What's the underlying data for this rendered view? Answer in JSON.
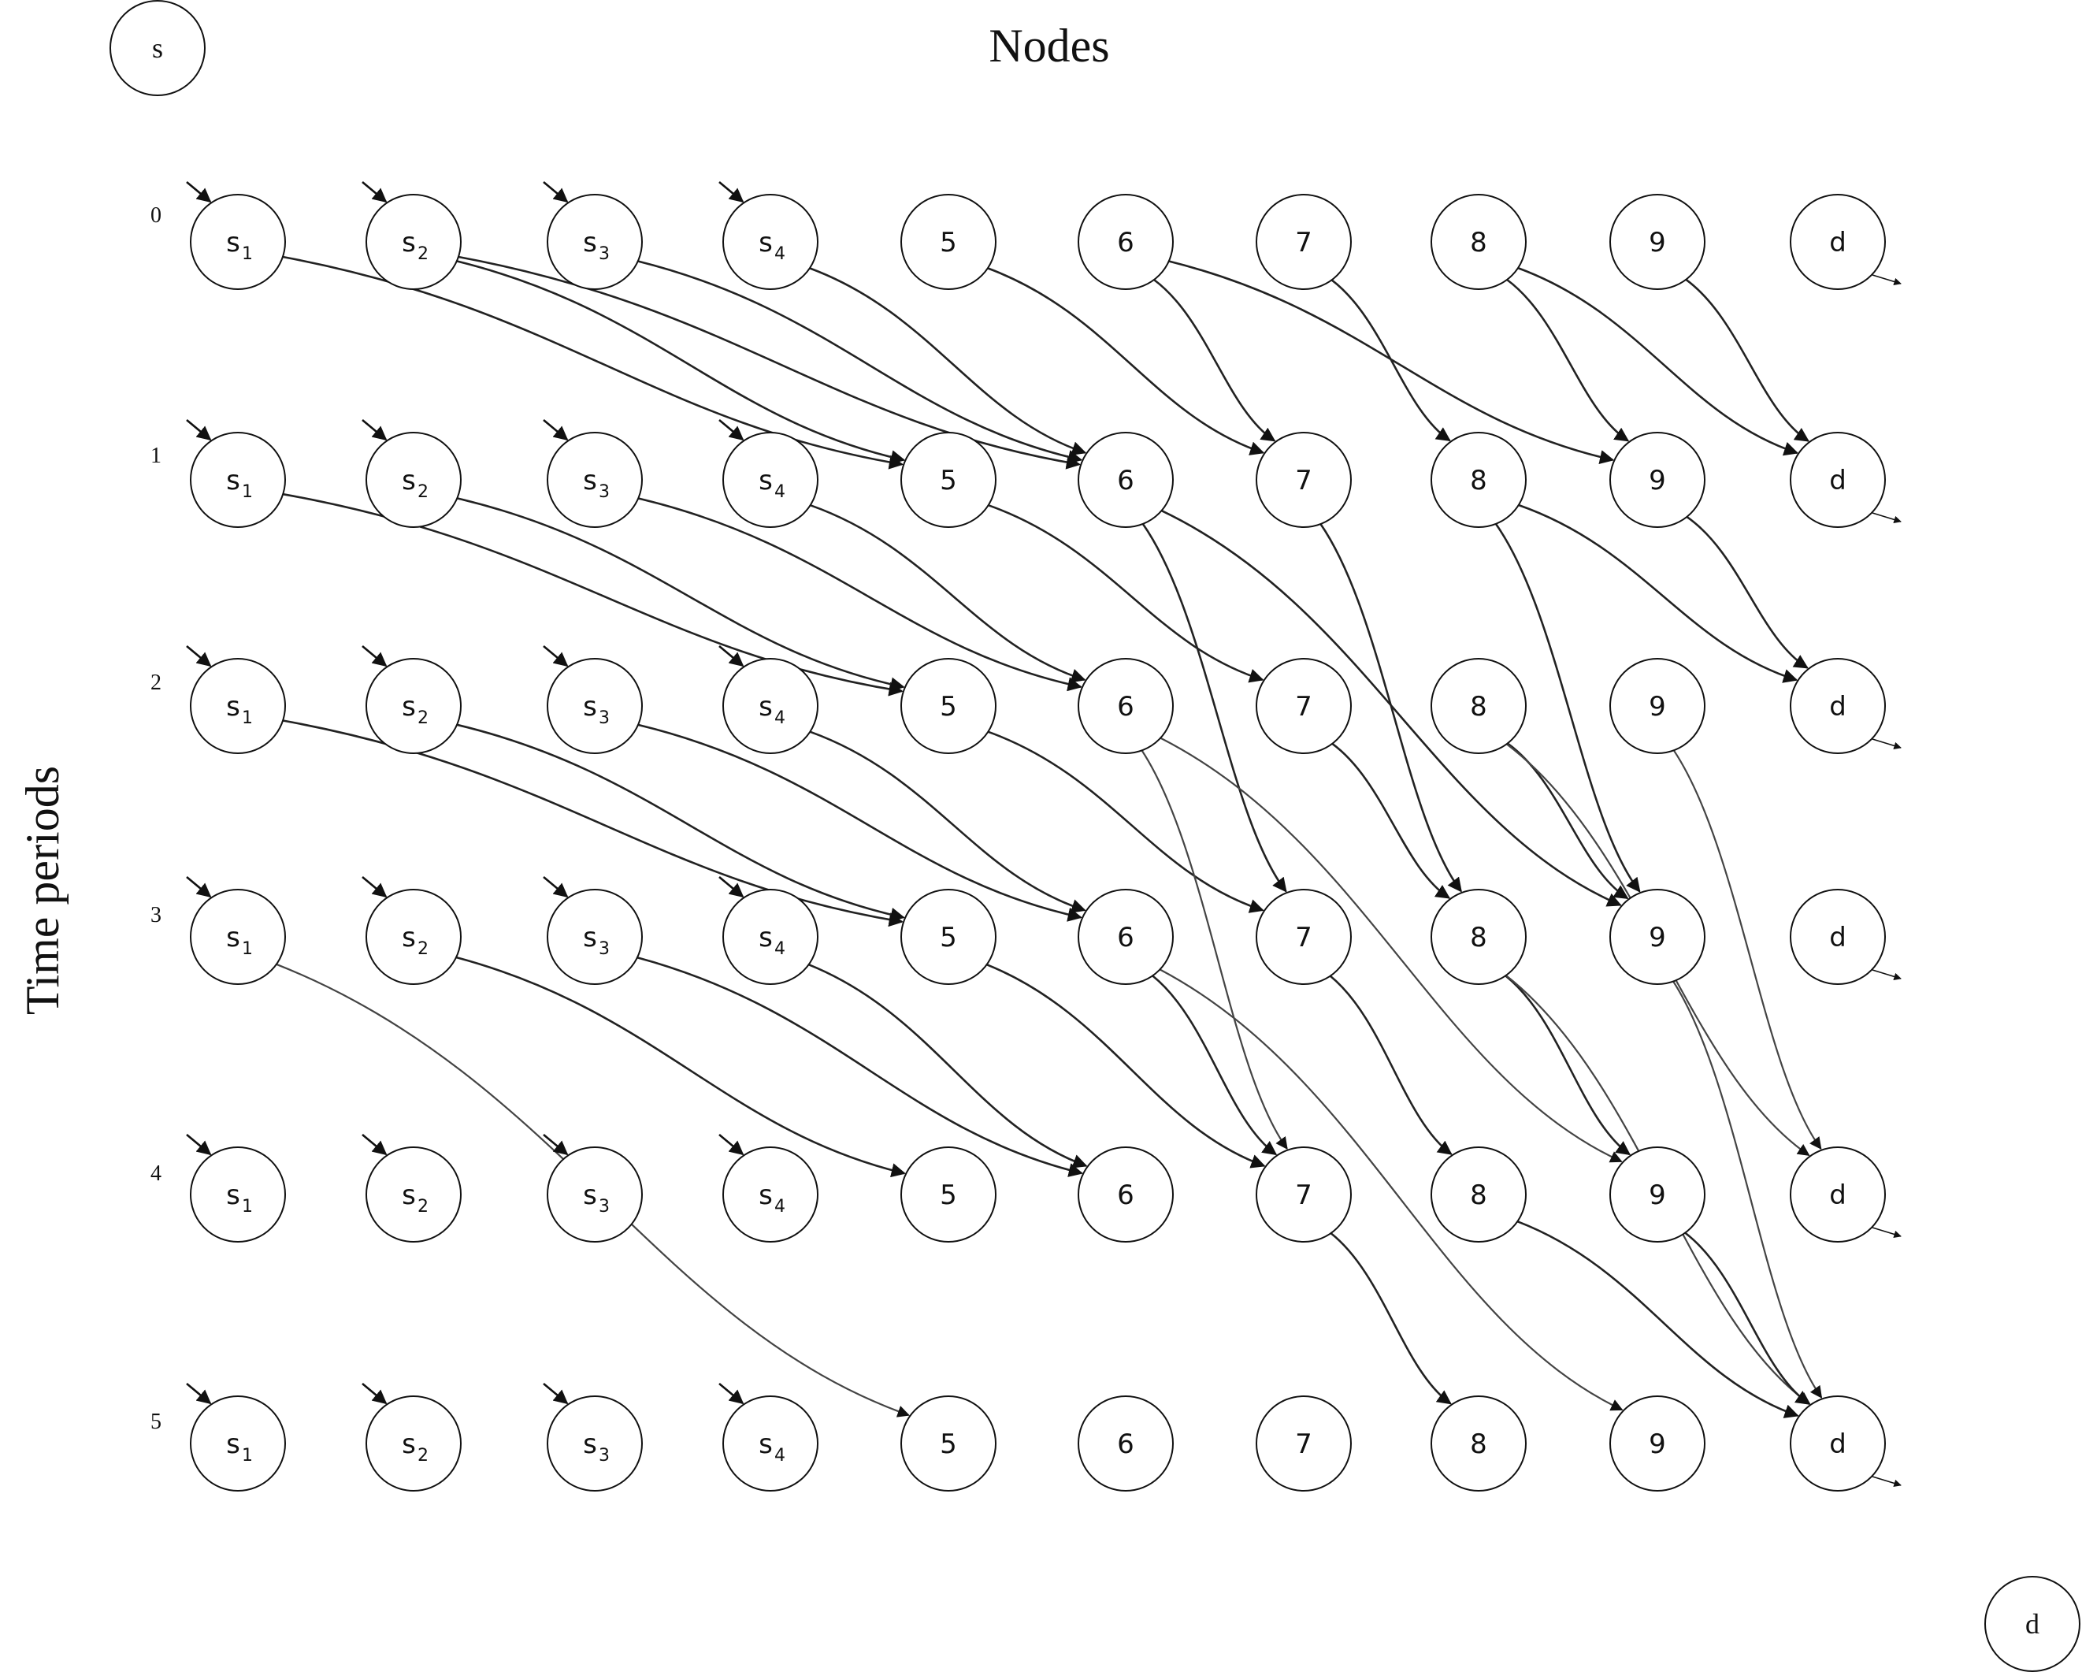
{
  "title": "Nodes",
  "y_axis_label": "Time periods",
  "super_source": "s",
  "super_sink": "d",
  "time_periods": [
    "0",
    "1",
    "2",
    "3",
    "4",
    "5"
  ],
  "node_columns": [
    {
      "id": "s1",
      "base": "s",
      "sub": "1"
    },
    {
      "id": "s2",
      "base": "s",
      "sub": "2"
    },
    {
      "id": "s3",
      "base": "s",
      "sub": "3"
    },
    {
      "id": "s4",
      "base": "s",
      "sub": "4"
    },
    {
      "id": "5",
      "base": "5",
      "sub": ""
    },
    {
      "id": "6",
      "base": "6",
      "sub": ""
    },
    {
      "id": "7",
      "base": "7",
      "sub": ""
    },
    {
      "id": "8",
      "base": "8",
      "sub": ""
    },
    {
      "id": "9",
      "base": "9",
      "sub": ""
    },
    {
      "id": "d",
      "base": "d",
      "sub": ""
    }
  ],
  "edges": [
    {
      "from": [
        "s1",
        0
      ],
      "to": [
        "5",
        1
      ]
    },
    {
      "from": [
        "s2",
        0
      ],
      "to": [
        "5",
        1
      ]
    },
    {
      "from": [
        "s2",
        0
      ],
      "to": [
        "6",
        1
      ]
    },
    {
      "from": [
        "s3",
        0
      ],
      "to": [
        "6",
        1
      ]
    },
    {
      "from": [
        "s4",
        0
      ],
      "to": [
        "6",
        1
      ]
    },
    {
      "from": [
        "5",
        0
      ],
      "to": [
        "7",
        1
      ]
    },
    {
      "from": [
        "6",
        0
      ],
      "to": [
        "7",
        1
      ]
    },
    {
      "from": [
        "6",
        0
      ],
      "to": [
        "9",
        1
      ]
    },
    {
      "from": [
        "7",
        0
      ],
      "to": [
        "8",
        1
      ]
    },
    {
      "from": [
        "8",
        0
      ],
      "to": [
        "9",
        1
      ]
    },
    {
      "from": [
        "8",
        0
      ],
      "to": [
        "d",
        1
      ]
    },
    {
      "from": [
        "9",
        0
      ],
      "to": [
        "d",
        1
      ]
    },
    {
      "from": [
        "s1",
        1
      ],
      "to": [
        "5",
        2
      ]
    },
    {
      "from": [
        "s2",
        1
      ],
      "to": [
        "5",
        2
      ]
    },
    {
      "from": [
        "s3",
        1
      ],
      "to": [
        "6",
        2
      ]
    },
    {
      "from": [
        "s4",
        1
      ],
      "to": [
        "6",
        2
      ]
    },
    {
      "from": [
        "5",
        1
      ],
      "to": [
        "7",
        2
      ]
    },
    {
      "from": [
        "6",
        1
      ],
      "to": [
        "7",
        3
      ]
    },
    {
      "from": [
        "6",
        1
      ],
      "to": [
        "9",
        3
      ]
    },
    {
      "from": [
        "7",
        1
      ],
      "to": [
        "8",
        3
      ]
    },
    {
      "from": [
        "8",
        1
      ],
      "to": [
        "9",
        3
      ]
    },
    {
      "from": [
        "8",
        1
      ],
      "to": [
        "d",
        2
      ]
    },
    {
      "from": [
        "9",
        1
      ],
      "to": [
        "d",
        2
      ]
    },
    {
      "from": [
        "s1",
        2
      ],
      "to": [
        "5",
        3
      ]
    },
    {
      "from": [
        "s2",
        2
      ],
      "to": [
        "5",
        3
      ]
    },
    {
      "from": [
        "s3",
        2
      ],
      "to": [
        "6",
        3
      ]
    },
    {
      "from": [
        "s4",
        2
      ],
      "to": [
        "6",
        3
      ]
    },
    {
      "from": [
        "5",
        2
      ],
      "to": [
        "7",
        3
      ]
    },
    {
      "from": [
        "6",
        2
      ],
      "to": [
        "7",
        4
      ]
    },
    {
      "from": [
        "6",
        2
      ],
      "to": [
        "9",
        4
      ]
    },
    {
      "from": [
        "7",
        2
      ],
      "to": [
        "8",
        3
      ]
    },
    {
      "from": [
        "8",
        2
      ],
      "to": [
        "9",
        3
      ]
    },
    {
      "from": [
        "8",
        2
      ],
      "to": [
        "d",
        4
      ]
    },
    {
      "from": [
        "9",
        2
      ],
      "to": [
        "d",
        4
      ]
    },
    {
      "from": [
        "s1",
        3
      ],
      "to": [
        "5",
        5
      ]
    },
    {
      "from": [
        "s2",
        3
      ],
      "to": [
        "5",
        4
      ]
    },
    {
      "from": [
        "s3",
        3
      ],
      "to": [
        "6",
        4
      ]
    },
    {
      "from": [
        "s4",
        3
      ],
      "to": [
        "6",
        4
      ]
    },
    {
      "from": [
        "5",
        3
      ],
      "to": [
        "7",
        4
      ]
    },
    {
      "from": [
        "6",
        3
      ],
      "to": [
        "7",
        4
      ]
    },
    {
      "from": [
        "6",
        3
      ],
      "to": [
        "9",
        5
      ]
    },
    {
      "from": [
        "7",
        3
      ],
      "to": [
        "8",
        4
      ]
    },
    {
      "from": [
        "8",
        3
      ],
      "to": [
        "9",
        4
      ]
    },
    {
      "from": [
        "8",
        3
      ],
      "to": [
        "d",
        5
      ]
    },
    {
      "from": [
        "9",
        3
      ],
      "to": [
        "d",
        5
      ]
    },
    {
      "from": [
        "7",
        4
      ],
      "to": [
        "8",
        5
      ]
    },
    {
      "from": [
        "8",
        4
      ],
      "to": [
        "d",
        5
      ]
    },
    {
      "from": [
        "9",
        4
      ],
      "to": [
        "d",
        5
      ]
    }
  ],
  "colors": {
    "line": "#111111",
    "edge": "#222222",
    "background": "#ffffff"
  }
}
